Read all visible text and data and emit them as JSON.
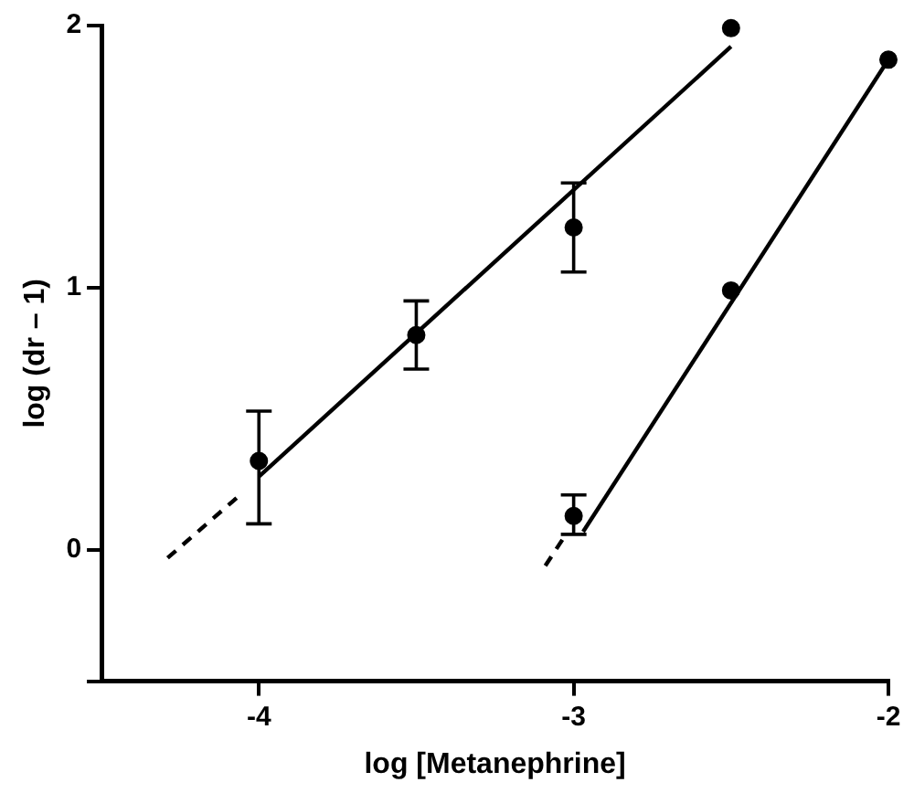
{
  "chart_data": {
    "type": "scatter",
    "xlabel": "log [Metanephrine]",
    "ylabel": "log (dr – 1)",
    "xlim": [
      -4.5,
      -2
    ],
    "xticks": [
      -4,
      -3,
      -2
    ],
    "ylim": [
      -0.5,
      2
    ],
    "yticks": [
      {
        "value": -0.5,
        "label": null
      },
      0,
      1,
      2
    ],
    "grid": false,
    "legend": false,
    "marker": "circle",
    "series": [
      {
        "color": "#000000",
        "x": [
          -4,
          -3.5,
          -3,
          -2.5
        ],
        "values": [
          0.34,
          0.82,
          1.23,
          1.99
        ],
        "errors": [
          [
            0.1,
            0.53
          ],
          [
            0.69,
            0.95
          ],
          [
            1.06,
            1.4
          ],
          null
        ]
      },
      {
        "color": "#000000",
        "x": [
          -3,
          -2.5,
          -2
        ],
        "values": [
          0.13,
          0.99,
          1.87
        ],
        "errors": [
          [
            0.06,
            0.21
          ],
          null,
          null
        ]
      },
      {
        "type": "line",
        "color": "#000000",
        "marker": "none",
        "line_style": "solid",
        "x": [
          -4,
          -2.5
        ],
        "values": [
          0.28,
          1.92
        ]
      },
      {
        "type": "line",
        "color": "#000000",
        "marker": "none",
        "line_style": "dashed",
        "x": [
          -4.29,
          -4.06
        ],
        "values": [
          -0.03,
          0.21
        ]
      },
      {
        "type": "line",
        "color": "#000000",
        "marker": "none",
        "line_style": "solid",
        "x": [
          -2.97,
          -2
        ],
        "values": [
          0.07,
          1.87
        ]
      },
      {
        "type": "line",
        "color": "#000000",
        "marker": "none",
        "line_style": "dashed",
        "x": [
          -3.09,
          -3.03
        ],
        "values": [
          -0.06,
          0.05
        ]
      }
    ]
  }
}
